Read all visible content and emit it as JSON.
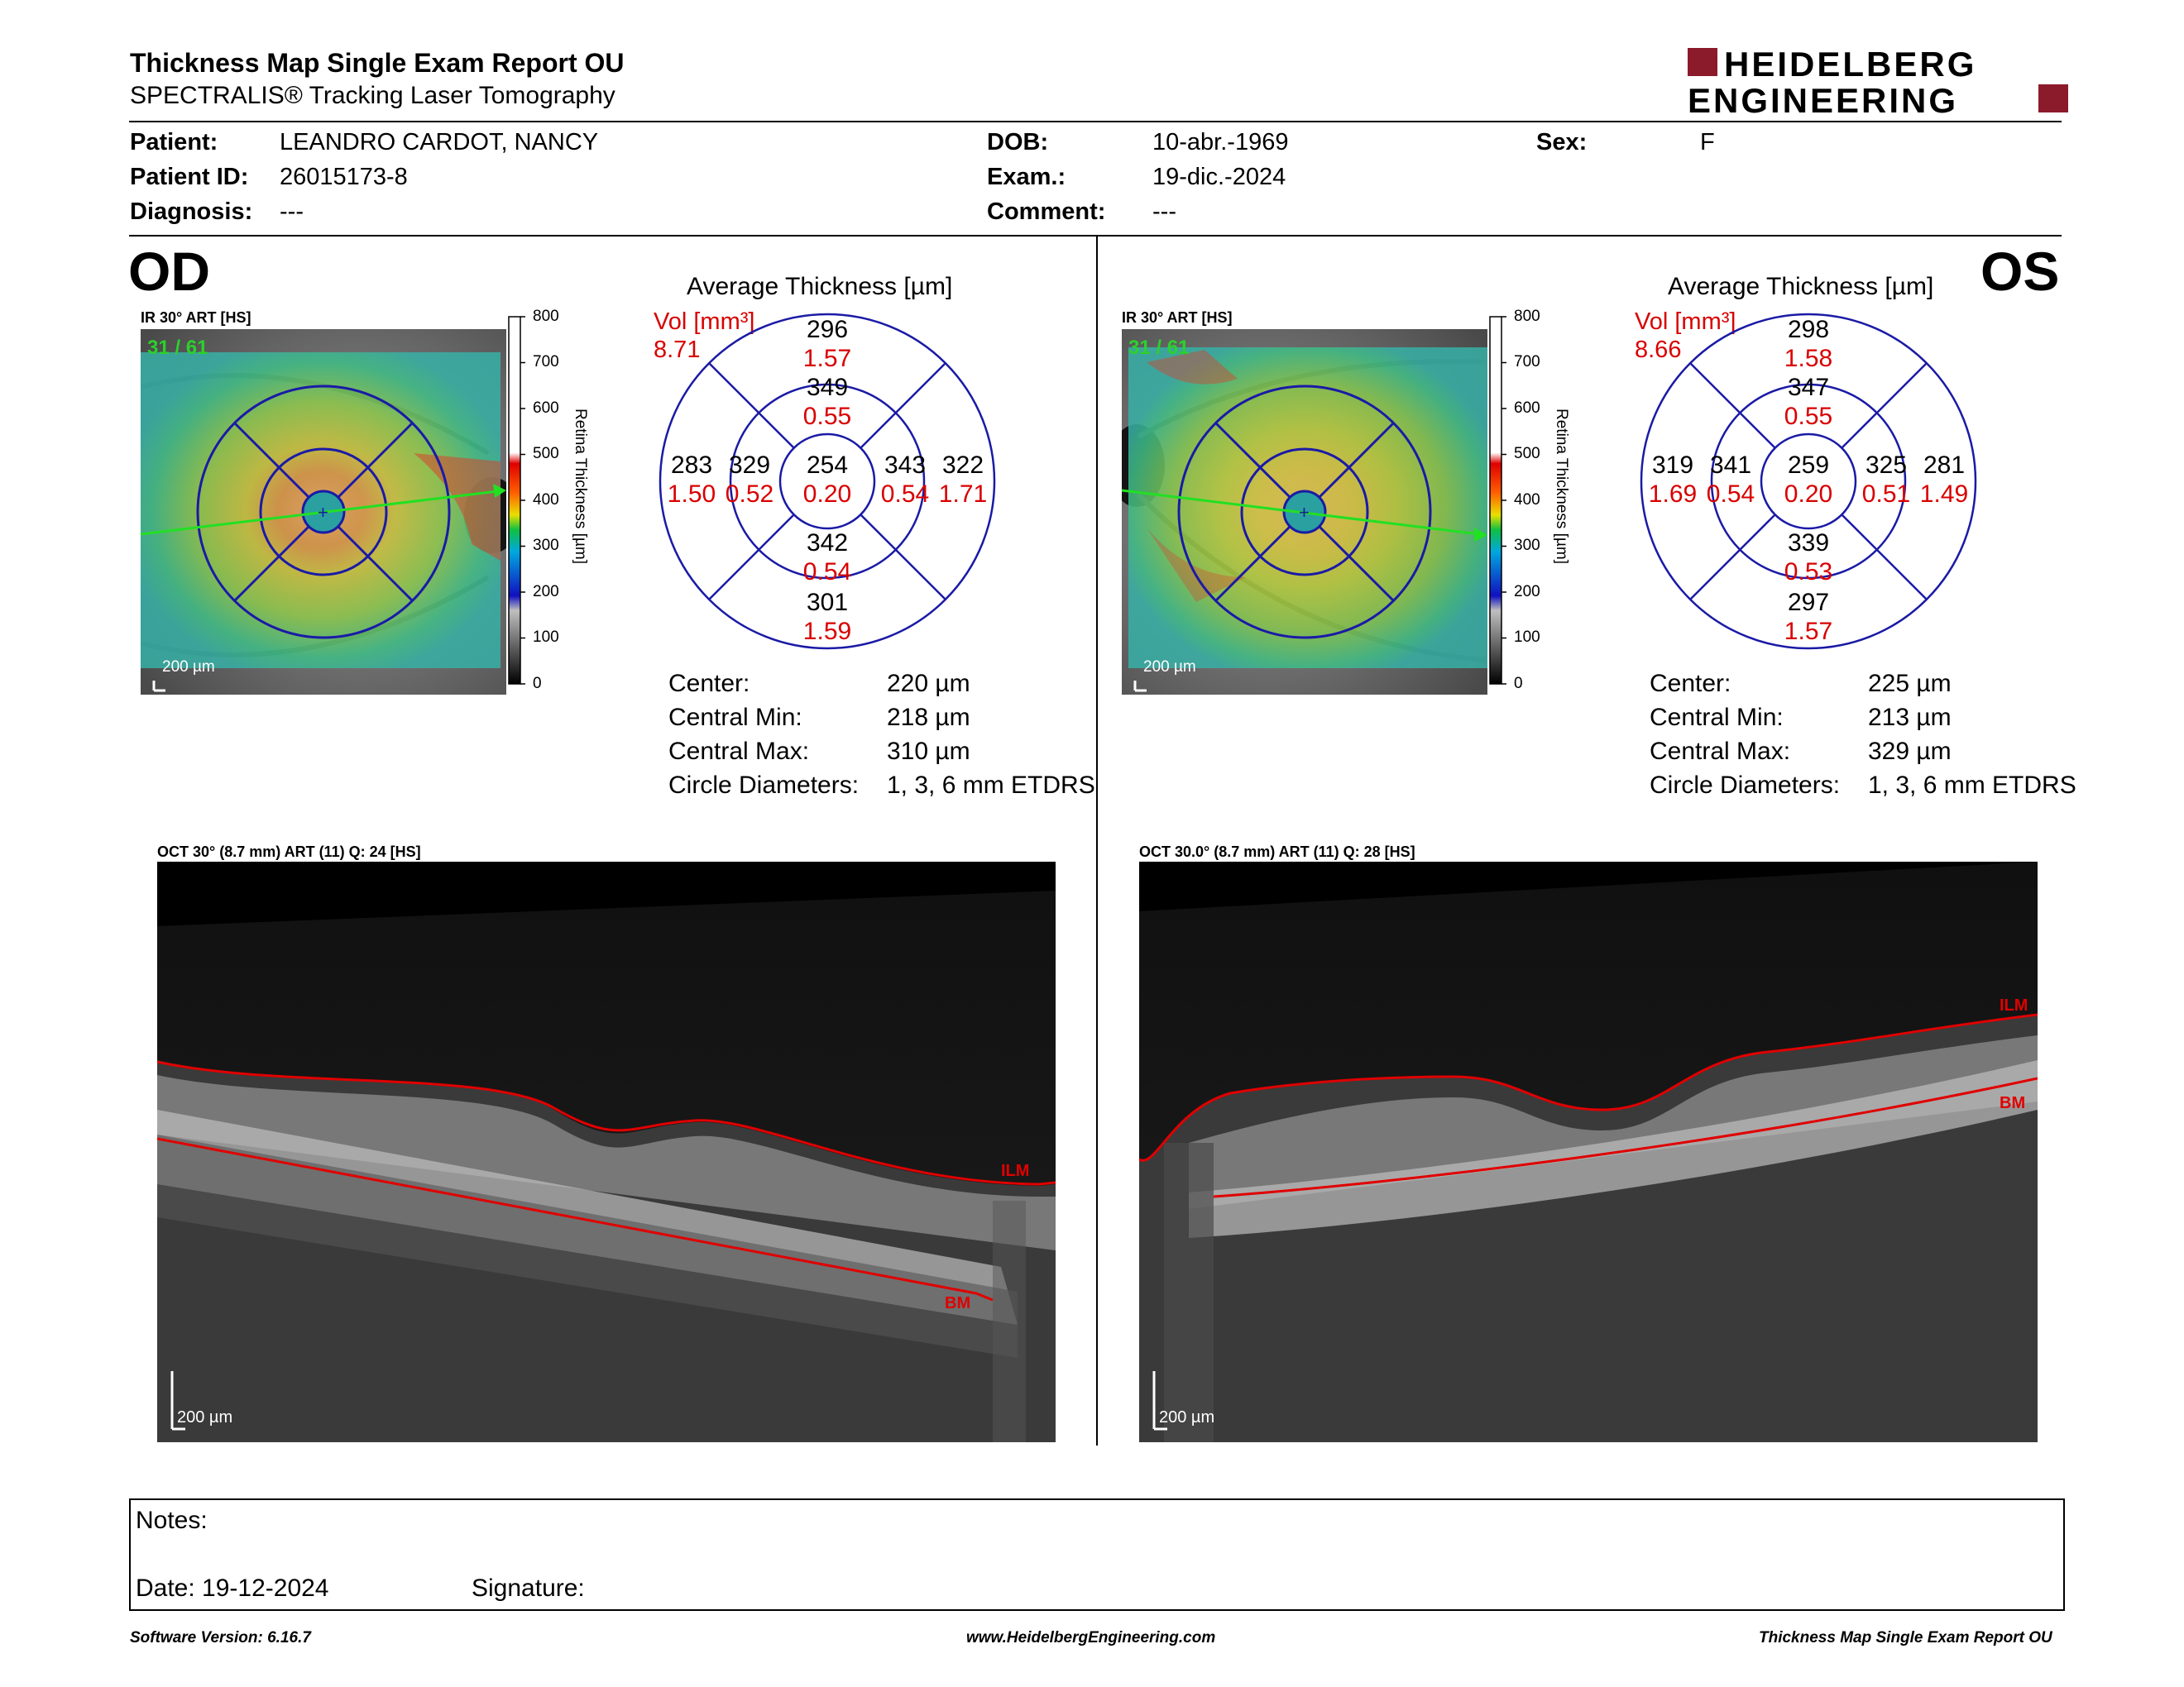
{
  "header": {
    "title": "Thickness Map Single Exam Report OU",
    "subtitle": "SPECTRALIS® Tracking Laser Tomography",
    "logo_line1": "HEIDELBERG",
    "logo_line2": "ENGINEERING",
    "logo_color": "#8b1a2b"
  },
  "patient": {
    "patient_label": "Patient:",
    "patient_value": "LEANDRO CARDOT, NANCY",
    "id_label": "Patient ID:",
    "id_value": "26015173-8",
    "diagnosis_label": "Diagnosis:",
    "diagnosis_value": "---",
    "dob_label": "DOB:",
    "dob_value": "10-abr.-1969",
    "exam_label": "Exam.:",
    "exam_value": "19-dic.-2024",
    "comment_label": "Comment:",
    "comment_value": "---",
    "sex_label": "Sex:",
    "sex_value": "F"
  },
  "eyes": [
    {
      "eye_label": "OD",
      "map_header": "IR 30° ART [HS]",
      "map_counter": "31 / 61",
      "map_scalebar": "200 µm",
      "avg_title": "Average Thickness [µm]",
      "vol_label": "Vol [mm³]",
      "vol_total": "8.71",
      "center": {
        "thick": "254",
        "vol": "0.20"
      },
      "inner": {
        "top": {
          "thick": "349",
          "vol": "0.55"
        },
        "bottom": {
          "thick": "342",
          "vol": "0.54"
        },
        "left": {
          "thick": "329",
          "vol": "0.52"
        },
        "right": {
          "thick": "343",
          "vol": "0.54"
        }
      },
      "outer": {
        "top": {
          "thick": "296",
          "vol": "1.57"
        },
        "bottom": {
          "thick": "301",
          "vol": "1.59"
        },
        "left": {
          "thick": "283",
          "vol": "1.50"
        },
        "right": {
          "thick": "322",
          "vol": "1.71"
        }
      },
      "stats": [
        {
          "label": "Center:",
          "value": "220 µm"
        },
        {
          "label": "Central Min:",
          "value": "218 µm"
        },
        {
          "label": "Central Max:",
          "value": "310 µm"
        },
        {
          "label": "Circle Diameters:",
          "value": "1, 3, 6 mm ETDRS"
        }
      ],
      "oct_header": "OCT 30° (8.7 mm) ART (11) Q: 24 [HS]",
      "oct_scalebar": "200 µm",
      "ilm_label": "ILM",
      "bm_label": "BM"
    },
    {
      "eye_label": "OS",
      "map_header": "IR 30° ART [HS]",
      "map_counter": "31 / 61",
      "map_scalebar": "200 µm",
      "avg_title": "Average Thickness [µm]",
      "vol_label": "Vol [mm³]",
      "vol_total": "8.66",
      "center": {
        "thick": "259",
        "vol": "0.20"
      },
      "inner": {
        "top": {
          "thick": "347",
          "vol": "0.55"
        },
        "bottom": {
          "thick": "339",
          "vol": "0.53"
        },
        "left": {
          "thick": "341",
          "vol": "0.54"
        },
        "right": {
          "thick": "325",
          "vol": "0.51"
        }
      },
      "outer": {
        "top": {
          "thick": "298",
          "vol": "1.58"
        },
        "bottom": {
          "thick": "297",
          "vol": "1.57"
        },
        "left": {
          "thick": "319",
          "vol": "1.69"
        },
        "right": {
          "thick": "281",
          "vol": "1.49"
        }
      },
      "stats": [
        {
          "label": "Center:",
          "value": "225 µm"
        },
        {
          "label": "Central Min:",
          "value": "213 µm"
        },
        {
          "label": "Central Max:",
          "value": "329 µm"
        },
        {
          "label": "Circle Diameters:",
          "value": "1, 3, 6 mm ETDRS"
        }
      ],
      "oct_header": "OCT 30.0° (8.7 mm) ART (11) Q: 28 [HS]",
      "oct_scalebar": "200 µm",
      "ilm_label": "ILM",
      "bm_label": "BM"
    }
  ],
  "colorbar": {
    "title": "Retina Thickness [µm]",
    "ticks": [
      "800",
      "700",
      "600",
      "500",
      "400",
      "300",
      "200",
      "100",
      "0"
    ]
  },
  "notes": {
    "notes_label": "Notes:",
    "date_label": "Date: 19-12-2024",
    "signature_label": "Signature:"
  },
  "footer": {
    "left": "Software Version: 6.16.7",
    "center": "www.HeidelbergEngineering.com",
    "right": "Thickness Map Single Exam Report OU"
  },
  "colors": {
    "vol_red": "#d90000",
    "grid_blue": "#1a1aa6",
    "segmentation_red": "#e00000",
    "counter_green": "#2bd12b"
  }
}
